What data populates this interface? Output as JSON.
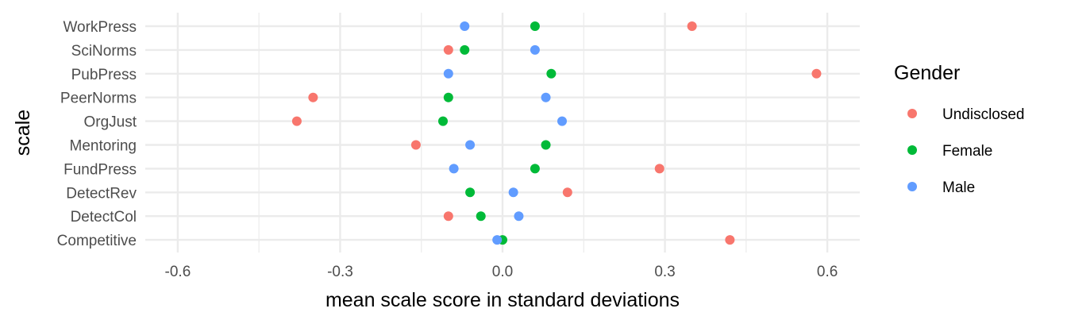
{
  "chart_data": {
    "type": "scatter",
    "xlabel": "mean scale score in standard deviations",
    "ylabel": "scale",
    "xlim": [
      -0.66,
      0.66
    ],
    "x_ticks": [
      -0.6,
      -0.3,
      0.0,
      0.3,
      0.6
    ],
    "x_tick_labels": [
      "-0.6",
      "-0.3",
      "0.0",
      "0.3",
      "0.6"
    ],
    "grid": true,
    "legend_title": "Gender",
    "legend_position": "right",
    "categories": [
      "WorkPress",
      "SciNorms",
      "PubPress",
      "PeerNorms",
      "OrgJust",
      "Mentoring",
      "FundPress",
      "DetectRev",
      "DetectCol",
      "Competitive"
    ],
    "series": [
      {
        "name": "Undisclosed",
        "color": "#F8766D",
        "values": [
          0.35,
          -0.1,
          0.58,
          -0.35,
          -0.38,
          -0.16,
          0.29,
          0.12,
          -0.1,
          0.42
        ]
      },
      {
        "name": "Female",
        "color": "#00BA38",
        "values": [
          0.06,
          -0.07,
          0.09,
          -0.1,
          -0.11,
          0.08,
          0.06,
          -0.06,
          -0.04,
          -0.0
        ]
      },
      {
        "name": "Male",
        "color": "#619CFF",
        "values": [
          -0.07,
          0.06,
          -0.1,
          0.08,
          0.11,
          -0.06,
          -0.09,
          0.02,
          0.03,
          -0.01
        ]
      }
    ]
  }
}
